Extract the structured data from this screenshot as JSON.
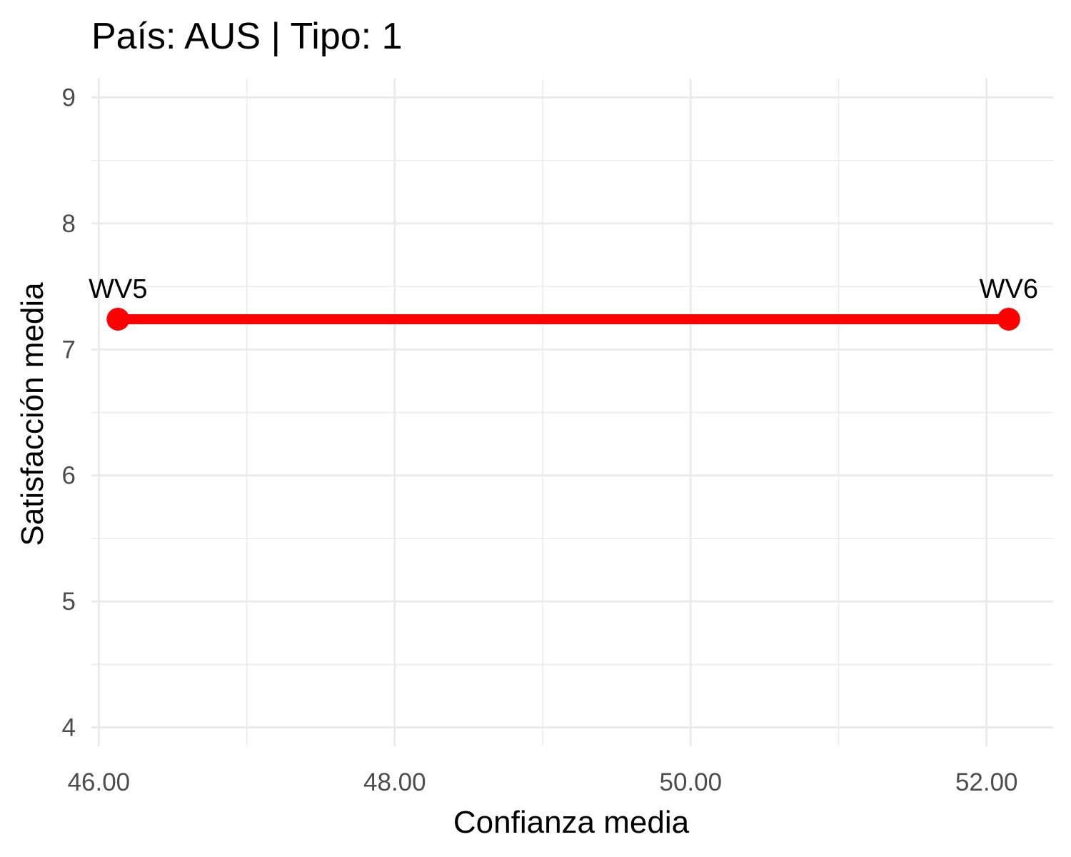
{
  "chart_data": {
    "type": "line",
    "title": "País: AUS | Tipo: 1",
    "xlabel": "Confianza media",
    "ylabel": "Satisfacción media",
    "xlim": [
      45.95,
      52.45
    ],
    "ylim": [
      3.85,
      9.15
    ],
    "x_ticks": [
      46,
      48,
      50,
      52
    ],
    "x_tick_labels": [
      "46.00",
      "48.00",
      "50.00",
      "52.00"
    ],
    "y_ticks": [
      4,
      5,
      6,
      7,
      8,
      9
    ],
    "y_tick_labels": [
      "4",
      "5",
      "6",
      "7",
      "8",
      "9"
    ],
    "grid": true,
    "legend": "none",
    "series": [
      {
        "color": "#ff0000",
        "points": [
          {
            "label": "WV5",
            "x": 46.13,
            "y": 7.24
          },
          {
            "label": "WV6",
            "x": 52.15,
            "y": 7.24
          }
        ]
      }
    ]
  }
}
